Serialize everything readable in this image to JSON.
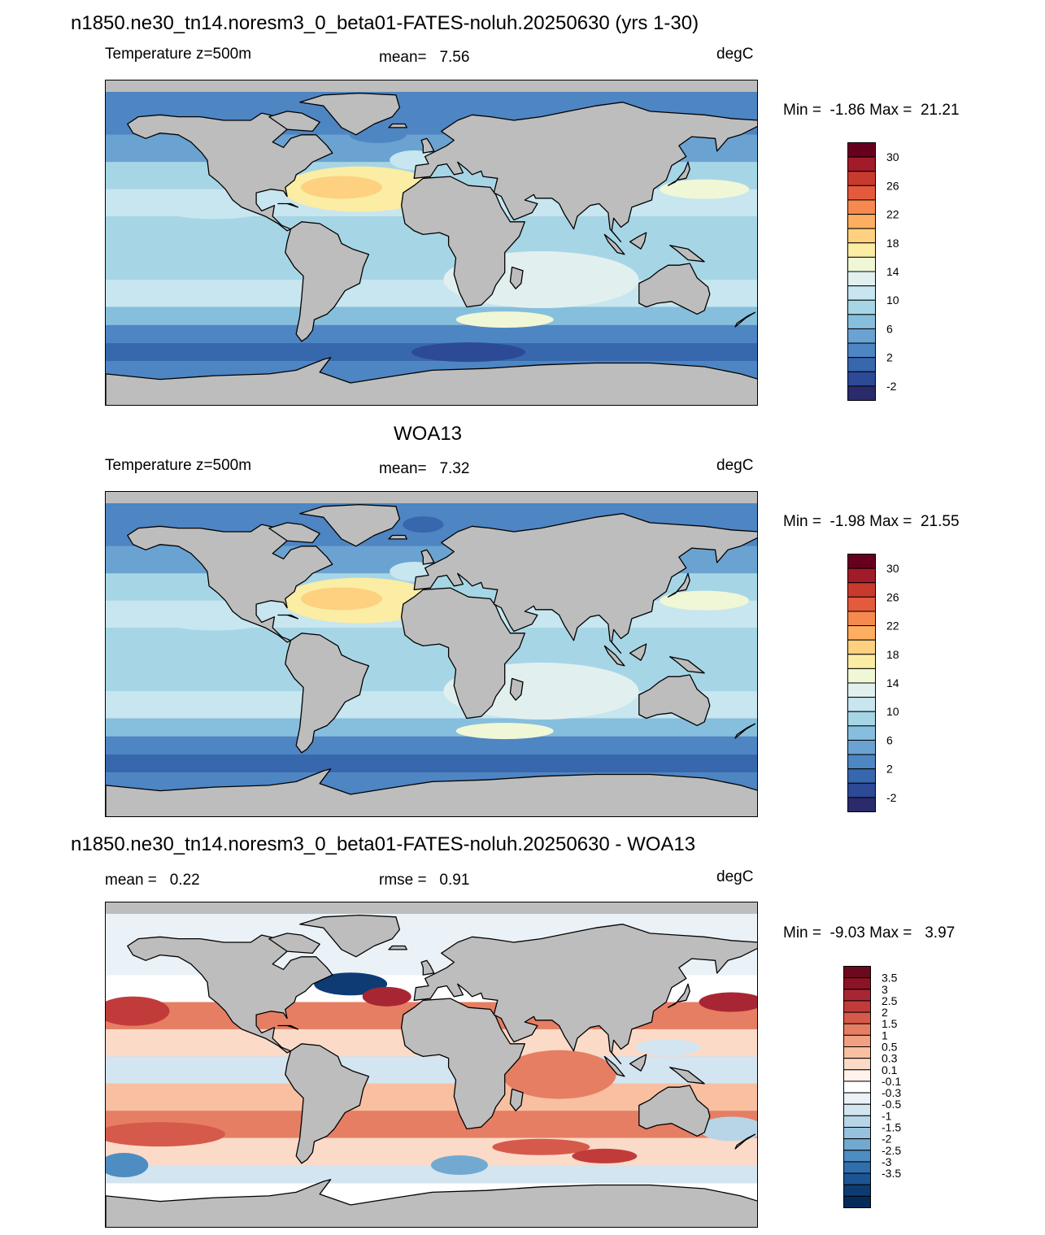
{
  "figure_title": "n1850.ne30_tn14.noresm3_0_beta01-FATES-noluh.20250630 (yrs 1-30)",
  "panels": [
    {
      "id": "model",
      "title": "",
      "left_label": "Temperature z=500m",
      "center_label": "mean=   7.56",
      "right_label": "degC",
      "minmax": "Min =  -1.86 Max =  21.21",
      "colorbar": {
        "labels": [
          "30",
          "26",
          "22",
          "18",
          "14",
          "10",
          "6",
          "2",
          "-2"
        ],
        "colors": [
          "#67001f",
          "#a11b29",
          "#c93a2e",
          "#e45a3c",
          "#f6894f",
          "#fdae61",
          "#fdd17f",
          "#fbeda4",
          "#f0f7d6",
          "#e1f0ef",
          "#c7e6ef",
          "#a6d6e6",
          "#86bfdd",
          "#6aa3d1",
          "#4e85c3",
          "#3767ad",
          "#2c4a96",
          "#2b2a6b"
        ]
      },
      "map_style": "model"
    },
    {
      "id": "obs",
      "title": "WOA13",
      "left_label": "Temperature z=500m",
      "center_label": "mean=   7.32",
      "right_label": "degC",
      "minmax": "Min =  -1.98 Max =  21.55",
      "colorbar": {
        "labels": [
          "30",
          "26",
          "22",
          "18",
          "14",
          "10",
          "6",
          "2",
          "-2"
        ],
        "colors": [
          "#67001f",
          "#a11b29",
          "#c93a2e",
          "#e45a3c",
          "#f6894f",
          "#fdae61",
          "#fdd17f",
          "#fbeda4",
          "#f0f7d6",
          "#e1f0ef",
          "#c7e6ef",
          "#a6d6e6",
          "#86bfdd",
          "#6aa3d1",
          "#4e85c3",
          "#3767ad",
          "#2c4a96",
          "#2b2a6b"
        ]
      },
      "map_style": "obs"
    },
    {
      "id": "diff",
      "title": "n1850.ne30_tn14.noresm3_0_beta01-FATES-noluh.20250630 - WOA13",
      "left_label": "mean =   0.22",
      "center_label": "rmse =   0.91",
      "right_label": "degC",
      "minmax": "Min =  -9.03 Max =   3.97",
      "colorbar": {
        "labels": [
          "3.5",
          "3",
          "2.5",
          "2",
          "1.5",
          "1",
          "0.5",
          "0.3",
          "0.1",
          "-0.1",
          "-0.3",
          "-0.5",
          "-1",
          "-1.5",
          "-2",
          "-2.5",
          "-3",
          "-3.5"
        ],
        "colors": [
          "#6b0a1f",
          "#8c1326",
          "#a82633",
          "#c23b3b",
          "#d65a4b",
          "#e67e63",
          "#f1a081",
          "#f8bfa1",
          "#fcdac8",
          "#fff3ec",
          "#ffffff",
          "#eaf2f8",
          "#d3e5f0",
          "#b8d5e8",
          "#97c2de",
          "#72a9d0",
          "#4d8dc1",
          "#2f6fad",
          "#1c5494",
          "#0e3b74",
          "#052b5a"
        ]
      },
      "map_style": "diff"
    }
  ]
}
